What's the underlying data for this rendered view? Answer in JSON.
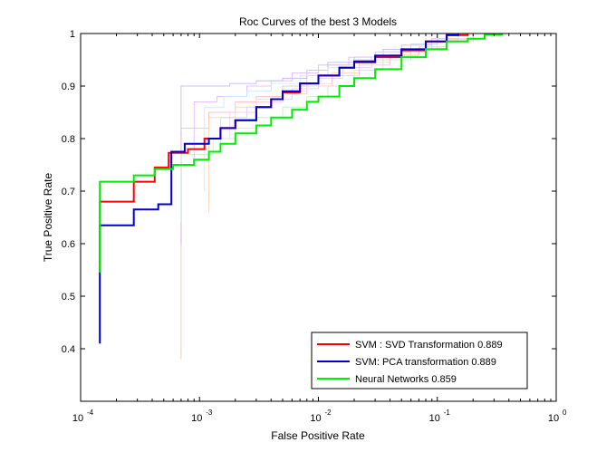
{
  "chart_data": {
    "type": "line",
    "title": "Roc Curves of the best 3 Models",
    "xlabel": "False Positive Rate",
    "ylabel": "True Positive Rate",
    "xscale": "log",
    "xlim": [
      0.0001,
      1
    ],
    "ylim": [
      0.3,
      1
    ],
    "xticks": [
      {
        "value": 0.0001,
        "base": "10",
        "exp": "-4"
      },
      {
        "value": 0.001,
        "base": "10",
        "exp": "-3"
      },
      {
        "value": 0.01,
        "base": "10",
        "exp": "-2"
      },
      {
        "value": 0.1,
        "base": "10",
        "exp": "-1"
      },
      {
        "value": 1,
        "base": "10",
        "exp": "0"
      }
    ],
    "yticks": [
      {
        "value": 0.4,
        "label": "0.4"
      },
      {
        "value": 0.5,
        "label": "0.5"
      },
      {
        "value": 0.6,
        "label": "0.6"
      },
      {
        "value": 0.7,
        "label": "0.7"
      },
      {
        "value": 0.8,
        "label": "0.8"
      },
      {
        "value": 0.9,
        "label": "0.9"
      },
      {
        "value": 1,
        "label": "1"
      }
    ],
    "grid": false,
    "legend_position": "bottom-right",
    "series": [
      {
        "name": "SVM : SVD Transformation  0.889",
        "color": "#ff0000",
        "x": [
          0.000145,
          0.000145,
          0.00028,
          0.00028,
          0.00042,
          0.00042,
          0.00055,
          0.00055,
          0.0008,
          0.0008,
          0.0011,
          0.0011,
          0.0015,
          0.0015,
          0.002,
          0.003,
          0.004,
          0.005,
          0.007,
          0.01,
          0.015,
          0.02,
          0.03,
          0.05,
          0.08,
          0.12,
          0.18
        ],
        "y": [
          0.545,
          0.68,
          0.685,
          0.718,
          0.72,
          0.745,
          0.75,
          0.773,
          0.778,
          0.78,
          0.788,
          0.8,
          0.81,
          0.82,
          0.835,
          0.86,
          0.875,
          0.888,
          0.905,
          0.92,
          0.935,
          0.945,
          0.955,
          0.968,
          0.985,
          0.997,
          1.0
        ]
      },
      {
        "name": "SVM: PCA transformation  0.889",
        "color": "#0000cc",
        "x": [
          0.000145,
          0.000145,
          0.00028,
          0.00028,
          0.00045,
          0.00045,
          0.00058,
          0.00058,
          0.00075,
          0.00075,
          0.0012,
          0.0015,
          0.002,
          0.003,
          0.004,
          0.005,
          0.007,
          0.01,
          0.015,
          0.02,
          0.03,
          0.05,
          0.08,
          0.12,
          0.15
        ],
        "y": [
          0.41,
          0.635,
          0.64,
          0.665,
          0.67,
          0.675,
          0.68,
          0.775,
          0.78,
          0.79,
          0.8,
          0.82,
          0.835,
          0.86,
          0.875,
          0.89,
          0.905,
          0.92,
          0.935,
          0.947,
          0.958,
          0.97,
          0.985,
          0.997,
          1.0
        ]
      },
      {
        "name": "Neural Networks  0.859",
        "color": "#00ee00",
        "x": [
          0.000145,
          0.000145,
          0.00028,
          0.00028,
          0.00042,
          0.00042,
          0.0006,
          0.0009,
          0.0012,
          0.0015,
          0.002,
          0.003,
          0.004,
          0.006,
          0.008,
          0.01,
          0.015,
          0.02,
          0.03,
          0.05,
          0.08,
          0.12,
          0.18,
          0.25,
          0.35
        ],
        "y": [
          0.545,
          0.718,
          0.722,
          0.73,
          0.735,
          0.742,
          0.75,
          0.76,
          0.775,
          0.79,
          0.81,
          0.825,
          0.84,
          0.855,
          0.87,
          0.88,
          0.9,
          0.915,
          0.932,
          0.955,
          0.97,
          0.985,
          0.99,
          0.998,
          1.0
        ]
      }
    ],
    "background_series": [
      {
        "color": "#ffb0b0",
        "x": [
          0.0007,
          0.0007,
          0.0012,
          0.0012,
          0.002,
          0.003,
          0.005,
          0.008,
          0.012,
          0.02,
          0.035,
          0.06,
          0.1,
          0.15
        ],
        "y": [
          0.38,
          0.82,
          0.83,
          0.85,
          0.87,
          0.88,
          0.9,
          0.92,
          0.94,
          0.95,
          0.965,
          0.98,
          0.99,
          1.0
        ]
      },
      {
        "color": "#b0b0ff",
        "x": [
          0.0007,
          0.0007,
          0.0011,
          0.0011,
          0.0018,
          0.003,
          0.005,
          0.008,
          0.012,
          0.02,
          0.035,
          0.06,
          0.1,
          0.15
        ],
        "y": [
          0.6,
          0.9,
          0.9,
          0.9,
          0.905,
          0.91,
          0.915,
          0.93,
          0.945,
          0.955,
          0.97,
          0.98,
          0.99,
          1.0
        ]
      },
      {
        "color": "#b8f0b8",
        "x": [
          0.0007,
          0.0007,
          0.0013,
          0.0013,
          0.002,
          0.003,
          0.005,
          0.008,
          0.012,
          0.02,
          0.035,
          0.06,
          0.1,
          0.2
        ],
        "y": [
          0.64,
          0.77,
          0.78,
          0.8,
          0.82,
          0.84,
          0.86,
          0.88,
          0.9,
          0.93,
          0.95,
          0.97,
          0.985,
          1.0
        ]
      },
      {
        "color": "#e0b0ff",
        "x": [
          0.0009,
          0.0009,
          0.0014,
          0.0014,
          0.0025,
          0.004,
          0.006,
          0.01,
          0.018,
          0.03,
          0.05,
          0.09,
          0.15
        ],
        "y": [
          0.75,
          0.87,
          0.87,
          0.88,
          0.9,
          0.91,
          0.925,
          0.94,
          0.955,
          0.965,
          0.978,
          0.99,
          1.0
        ]
      },
      {
        "color": "#c0e8ff",
        "x": [
          0.0011,
          0.0011,
          0.0016,
          0.0016,
          0.0025,
          0.004,
          0.007,
          0.012,
          0.02,
          0.035,
          0.06,
          0.1,
          0.18
        ],
        "y": [
          0.7,
          0.86,
          0.86,
          0.88,
          0.89,
          0.905,
          0.92,
          0.935,
          0.95,
          0.965,
          0.98,
          0.99,
          1.0
        ]
      },
      {
        "color": "#ffd0b0",
        "x": [
          0.0012,
          0.0012,
          0.002,
          0.002,
          0.003,
          0.005,
          0.008,
          0.013,
          0.022,
          0.04,
          0.07,
          0.12,
          0.2
        ],
        "y": [
          0.66,
          0.84,
          0.845,
          0.86,
          0.875,
          0.89,
          0.905,
          0.925,
          0.945,
          0.96,
          0.975,
          0.99,
          1.0
        ]
      },
      {
        "color": "#d0d0ff",
        "x": [
          0.0015,
          0.0015,
          0.0025,
          0.0025,
          0.004,
          0.006,
          0.01,
          0.016,
          0.028,
          0.05,
          0.09,
          0.15
        ],
        "y": [
          0.78,
          0.84,
          0.845,
          0.86,
          0.875,
          0.895,
          0.915,
          0.935,
          0.955,
          0.97,
          0.985,
          1.0
        ]
      },
      {
        "color": "#ffc0e0",
        "x": [
          0.0018,
          0.0018,
          0.003,
          0.003,
          0.005,
          0.008,
          0.013,
          0.022,
          0.04,
          0.07,
          0.12,
          0.2
        ],
        "y": [
          0.8,
          0.85,
          0.855,
          0.87,
          0.885,
          0.9,
          0.92,
          0.94,
          0.958,
          0.972,
          0.988,
          1.0
        ]
      }
    ]
  }
}
